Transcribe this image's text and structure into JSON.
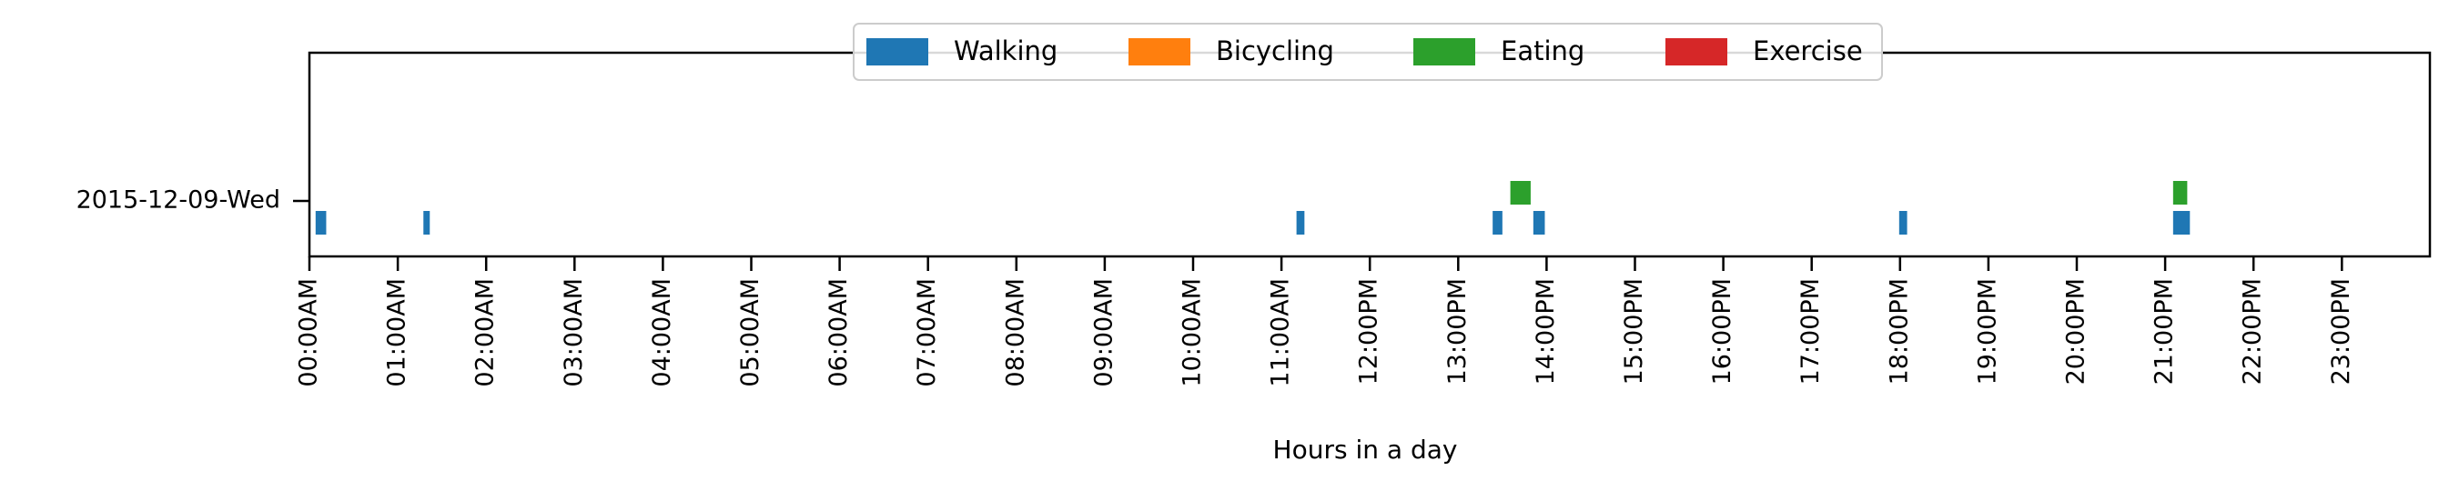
{
  "chart_data": {
    "type": "timeline",
    "xlabel": "Hours in a day",
    "xlim": [
      0,
      24
    ],
    "y_categories": [
      "2015-12-09-Wed"
    ],
    "x_ticks": [
      "00:00AM",
      "01:00AM",
      "02:00AM",
      "03:00AM",
      "04:00AM",
      "05:00AM",
      "06:00AM",
      "07:00AM",
      "08:00AM",
      "09:00AM",
      "10:00AM",
      "11:00AM",
      "12:00PM",
      "13:00PM",
      "14:00PM",
      "15:00PM",
      "16:00PM",
      "17:00PM",
      "18:00PM",
      "19:00PM",
      "20:00PM",
      "21:00PM",
      "22:00PM",
      "23:00PM"
    ],
    "legend": {
      "position": "top-center",
      "entries": [
        "Walking",
        "Bicycling",
        "Eating",
        "Exercise"
      ]
    },
    "series": [
      {
        "name": "Walking",
        "color": "#1f77b4",
        "intervals": [
          [
            0.07,
            0.19
          ],
          [
            1.29,
            1.35
          ],
          [
            11.17,
            11.26
          ],
          [
            13.39,
            13.5
          ],
          [
            13.85,
            13.98
          ],
          [
            17.99,
            18.08
          ],
          [
            21.09,
            21.28
          ]
        ]
      },
      {
        "name": "Bicycling",
        "color": "#ff7f0e",
        "intervals": []
      },
      {
        "name": "Eating",
        "color": "#2ca02c",
        "intervals": [
          [
            13.59,
            13.82
          ],
          [
            21.09,
            21.25
          ]
        ]
      },
      {
        "name": "Exercise",
        "color": "#d62728",
        "intervals": []
      }
    ]
  }
}
